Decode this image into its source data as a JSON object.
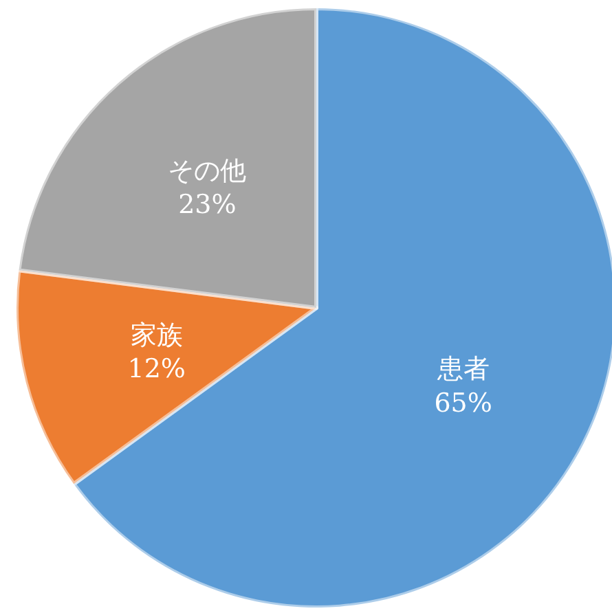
{
  "chart_data": {
    "type": "pie",
    "categories": [
      "患者",
      "家族",
      "その他"
    ],
    "values": [
      65,
      12,
      23
    ],
    "colors": [
      "#5b9bd5",
      "#ed7d31",
      "#a5a5a5"
    ],
    "value_labels": [
      "65%",
      "12%",
      "23%"
    ]
  }
}
